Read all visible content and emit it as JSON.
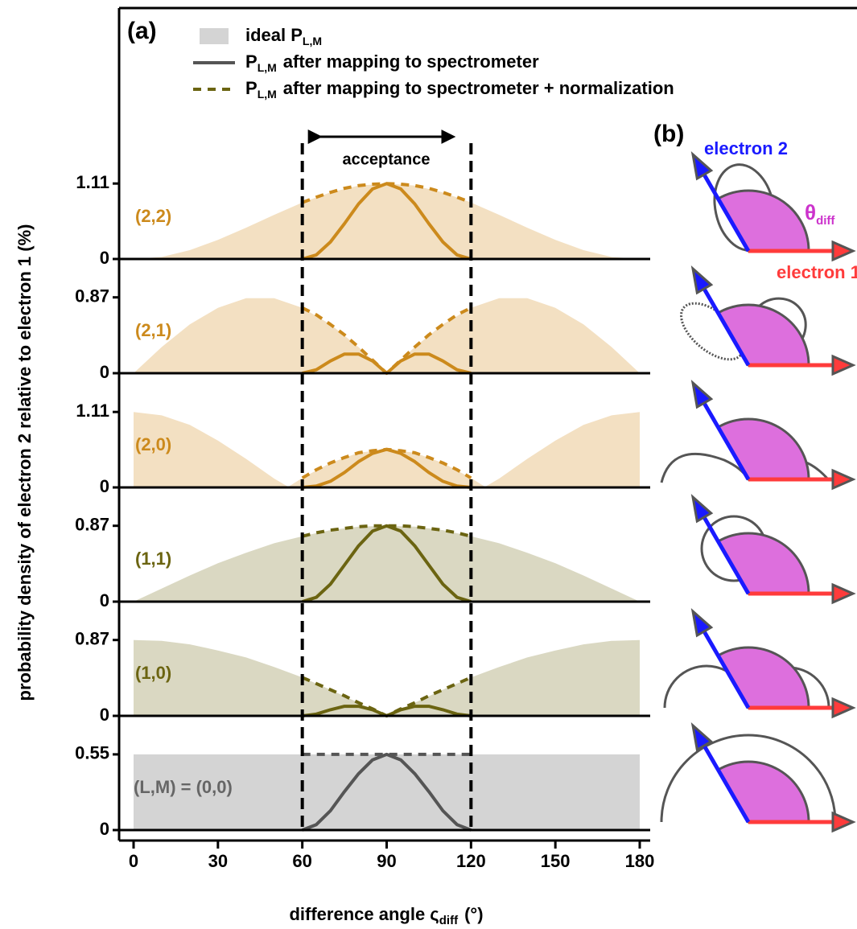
{
  "panel_a_label": "(a)",
  "legend": [
    {
      "parts": [
        "ideal P",
        "L,M"
      ],
      "style": "area",
      "color": "#d4d4d4"
    },
    {
      "parts": [
        "P",
        "L,M",
        "after mapping to spectrometer"
      ],
      "style": "solid",
      "color": "#555555"
    },
    {
      "parts": [
        "P",
        "L,M",
        "after mapping to spectrometer + normalization"
      ],
      "style": "dashed",
      "color": "#6b6411"
    }
  ],
  "acceptance": {
    "label": "acceptance",
    "x": [
      60,
      120
    ]
  },
  "panel_b": {
    "label": "(b)",
    "electron_2": "electron 2",
    "electron_1": "electron 1",
    "angle": [
      "θ",
      "diff"
    ]
  },
  "chart_data": {
    "type": "line",
    "ylabel": "probability density of electron 2 relative to electron 1 (%)",
    "xlabel": [
      "difference angle ς",
      "diff",
      "(°)"
    ],
    "xlim": [
      0,
      180
    ],
    "xticks": [
      0,
      30,
      60,
      90,
      120,
      150,
      180
    ],
    "panels": [
      {
        "label": "(2,2)",
        "color": "#cc8a1c",
        "fill": "#f3e0c2",
        "ylim": [
          0,
          1.68
        ],
        "yticks": [
          0,
          1.11
        ],
        "series": [
          {
            "style": "area",
            "x": [
              0,
              10,
              20,
              30,
              40,
              50,
              60,
              70,
              80,
              90,
              100,
              110,
              120,
              130,
              140,
              150,
              160,
              170,
              180
            ],
            "values": [
              0,
              0.03,
              0.13,
              0.28,
              0.46,
              0.65,
              0.83,
              0.98,
              1.08,
              1.11,
              1.08,
              0.98,
              0.83,
              0.65,
              0.46,
              0.28,
              0.13,
              0.03,
              0
            ]
          },
          {
            "style": "solid",
            "x": [
              60,
              65,
              70,
              75,
              80,
              85,
              90,
              95,
              100,
              105,
              110,
              115,
              120
            ],
            "values": [
              0,
              0.06,
              0.25,
              0.52,
              0.81,
              1.03,
              1.11,
              1.03,
              0.81,
              0.52,
              0.25,
              0.06,
              0
            ]
          },
          {
            "style": "dashed",
            "x": [
              60,
              65,
              70,
              75,
              80,
              85,
              90,
              95,
              100,
              105,
              110,
              115,
              120
            ],
            "values": [
              0.83,
              0.91,
              0.98,
              1.04,
              1.08,
              1.1,
              1.11,
              1.1,
              1.08,
              1.04,
              0.98,
              0.91,
              0.83
            ]
          }
        ]
      },
      {
        "label": "(2,1)",
        "color": "#cc8a1c",
        "fill": "#f3e0c2",
        "ylim": [
          0,
          1.31
        ],
        "yticks": [
          0,
          0.87
        ],
        "series": [
          {
            "style": "area",
            "x": [
              0,
              10,
              20,
              30,
              40,
              50,
              60,
              70,
              80,
              90,
              100,
              110,
              120,
              130,
              140,
              150,
              160,
              170,
              180
            ],
            "values": [
              0,
              0.3,
              0.56,
              0.75,
              0.86,
              0.86,
              0.75,
              0.56,
              0.3,
              0,
              0.3,
              0.56,
              0.75,
              0.86,
              0.86,
              0.75,
              0.56,
              0.3,
              0
            ]
          },
          {
            "style": "solid",
            "x": [
              60,
              65,
              70,
              75,
              80,
              85,
              90,
              95,
              100,
              105,
              110,
              115,
              120
            ],
            "values": [
              0,
              0.04,
              0.14,
              0.22,
              0.22,
              0.14,
              0,
              0.14,
              0.22,
              0.22,
              0.14,
              0.04,
              0
            ]
          },
          {
            "style": "dashed",
            "x": [
              60,
              65,
              70,
              75,
              80,
              85,
              90,
              95,
              100,
              105,
              110,
              115,
              120
            ],
            "values": [
              0.75,
              0.67,
              0.56,
              0.44,
              0.3,
              0.15,
              0,
              0.15,
              0.3,
              0.44,
              0.56,
              0.67,
              0.75
            ]
          }
        ]
      },
      {
        "label": "(2,0)",
        "color": "#cc8a1c",
        "fill": "#f3e0c2",
        "ylim": [
          0,
          1.68
        ],
        "yticks": [
          0,
          1.11
        ],
        "series": [
          {
            "style": "area",
            "x": [
              0,
              10,
              20,
              30,
              40,
              50,
              55,
              60,
              70,
              80,
              90,
              100,
              110,
              120,
              125,
              130,
              140,
              150,
              160,
              170,
              180
            ],
            "values": [
              1.11,
              1.06,
              0.92,
              0.69,
              0.42,
              0.13,
              0.01,
              0.14,
              0.36,
              0.51,
              0.56,
              0.51,
              0.36,
              0.14,
              0.01,
              0.13,
              0.42,
              0.69,
              0.92,
              1.06,
              1.11
            ]
          },
          {
            "style": "solid",
            "x": [
              60,
              65,
              70,
              75,
              80,
              85,
              90,
              95,
              100,
              105,
              110,
              115,
              120
            ],
            "values": [
              0,
              0.02,
              0.09,
              0.22,
              0.38,
              0.5,
              0.56,
              0.5,
              0.38,
              0.22,
              0.09,
              0.02,
              0
            ]
          },
          {
            "style": "dashed",
            "x": [
              60,
              65,
              70,
              75,
              80,
              85,
              90,
              95,
              100,
              105,
              110,
              115,
              120
            ],
            "values": [
              0.14,
              0.26,
              0.36,
              0.44,
              0.51,
              0.54,
              0.56,
              0.54,
              0.51,
              0.44,
              0.36,
              0.26,
              0.14
            ]
          }
        ]
      },
      {
        "label": "(1,1)",
        "color": "#6b6411",
        "fill": "#dad8c2",
        "ylim": [
          0,
          1.31
        ],
        "yticks": [
          0,
          0.87
        ],
        "series": [
          {
            "style": "area",
            "x": [
              0,
              10,
              20,
              30,
              40,
              50,
              60,
              70,
              80,
              90,
              100,
              110,
              120,
              130,
              140,
              150,
              160,
              170,
              180
            ],
            "values": [
              0,
              0.15,
              0.3,
              0.44,
              0.56,
              0.67,
              0.75,
              0.82,
              0.86,
              0.87,
              0.86,
              0.82,
              0.75,
              0.67,
              0.56,
              0.44,
              0.3,
              0.15,
              0
            ]
          },
          {
            "style": "solid",
            "x": [
              60,
              65,
              70,
              75,
              80,
              85,
              90,
              95,
              100,
              105,
              110,
              115,
              120
            ],
            "values": [
              0,
              0.05,
              0.2,
              0.42,
              0.64,
              0.81,
              0.87,
              0.81,
              0.64,
              0.42,
              0.2,
              0.05,
              0
            ]
          },
          {
            "style": "dashed",
            "x": [
              60,
              65,
              70,
              75,
              80,
              85,
              90,
              95,
              100,
              105,
              110,
              115,
              120
            ],
            "values": [
              0.75,
              0.79,
              0.82,
              0.84,
              0.86,
              0.87,
              0.87,
              0.87,
              0.86,
              0.84,
              0.82,
              0.79,
              0.75
            ]
          }
        ]
      },
      {
        "label": "(1,0)",
        "color": "#6b6411",
        "fill": "#dad8c2",
        "ylim": [
          0,
          1.31
        ],
        "yticks": [
          0,
          0.87
        ],
        "series": [
          {
            "style": "area",
            "x": [
              0,
              10,
              20,
              30,
              40,
              50,
              60,
              70,
              80,
              90,
              100,
              110,
              120,
              130,
              140,
              150,
              160,
              170,
              180
            ],
            "values": [
              0.87,
              0.86,
              0.82,
              0.75,
              0.67,
              0.56,
              0.44,
              0.3,
              0.15,
              0,
              0.15,
              0.3,
              0.44,
              0.56,
              0.67,
              0.75,
              0.82,
              0.86,
              0.87
            ]
          },
          {
            "style": "solid",
            "x": [
              60,
              65,
              70,
              75,
              80,
              85,
              90,
              95,
              100,
              105,
              110,
              115,
              120
            ],
            "values": [
              0,
              0.02,
              0.07,
              0.11,
              0.11,
              0.07,
              0,
              0.07,
              0.11,
              0.11,
              0.07,
              0.02,
              0
            ]
          },
          {
            "style": "dashed",
            "x": [
              60,
              65,
              70,
              75,
              80,
              85,
              90,
              95,
              100,
              105,
              110,
              115,
              120
            ],
            "values": [
              0.44,
              0.37,
              0.3,
              0.23,
              0.15,
              0.08,
              0,
              0.08,
              0.15,
              0.23,
              0.3,
              0.37,
              0.44
            ]
          }
        ]
      },
      {
        "label": "(L,M) = (0,0)",
        "color": "#555555",
        "fill": "#d4d4d4",
        "label_color": "#666666",
        "ylim": [
          0,
          0.83
        ],
        "yticks": [
          0,
          0.55
        ],
        "series": [
          {
            "style": "area",
            "x": [
              0,
              180
            ],
            "values": [
              0.55,
              0.55
            ]
          },
          {
            "style": "solid",
            "x": [
              60,
              65,
              70,
              75,
              80,
              85,
              90,
              95,
              100,
              105,
              110,
              115,
              120
            ],
            "values": [
              0,
              0.04,
              0.14,
              0.28,
              0.41,
              0.51,
              0.55,
              0.51,
              0.41,
              0.28,
              0.14,
              0.04,
              0
            ]
          },
          {
            "style": "dashed",
            "x": [
              60,
              65,
              70,
              75,
              80,
              85,
              90,
              95,
              100,
              105,
              110,
              115,
              120
            ],
            "values": [
              0.55,
              0.55,
              0.55,
              0.55,
              0.55,
              0.55,
              0.55,
              0.55,
              0.55,
              0.55,
              0.55,
              0.55,
              0.55
            ]
          }
        ]
      }
    ]
  }
}
